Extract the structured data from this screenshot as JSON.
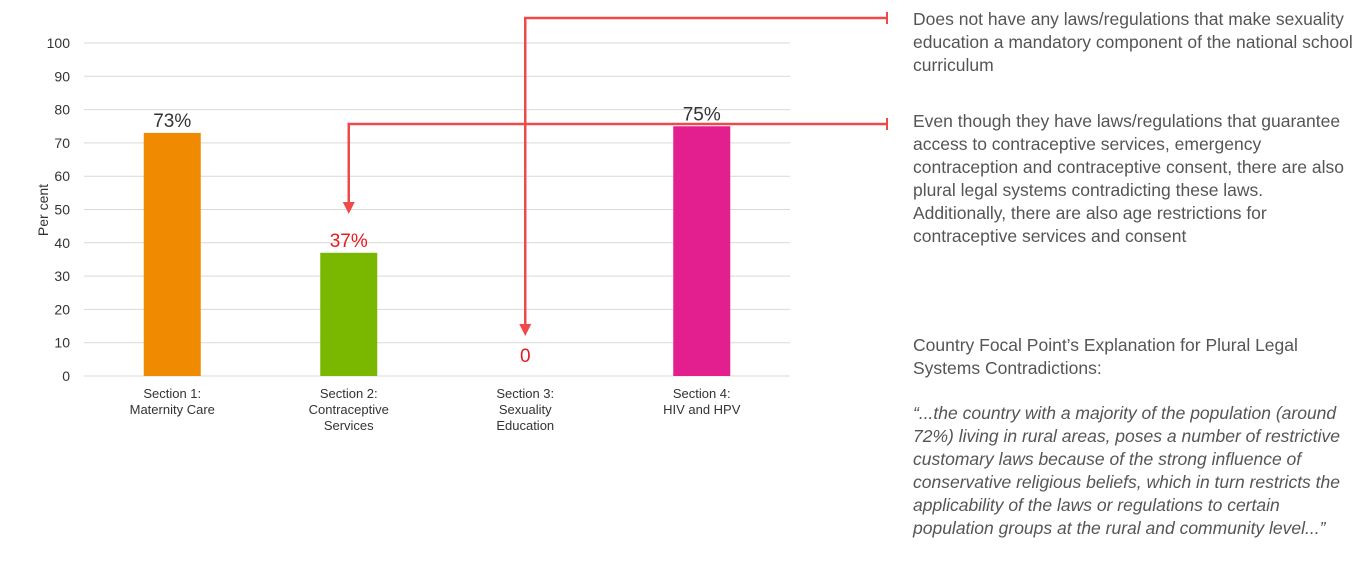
{
  "chart_data": {
    "type": "bar",
    "categories": [
      [
        "Section 1:",
        "Maternity Care"
      ],
      [
        "Section 2:",
        "Contraceptive",
        "Services"
      ],
      [
        "Section 3:",
        "Sexuality",
        "Education"
      ],
      [
        "Section 4:",
        "HIV and HPV"
      ]
    ],
    "values": [
      73,
      37,
      0,
      75
    ],
    "value_labels": [
      "73%",
      "37%",
      "0",
      "75%"
    ],
    "bar_colors": [
      "#f08a00",
      "#7ab800",
      "#ffffff",
      "#e31e8f"
    ],
    "value_label_colors": [
      "#333333",
      "#e8191f",
      "#e8191f",
      "#333333"
    ],
    "ylabel": "Per cent",
    "ylim": [
      0,
      100
    ],
    "yticks": [
      0,
      10,
      20,
      30,
      40,
      50,
      60,
      70,
      80,
      90,
      100
    ],
    "grid": true,
    "grid_color": "#d9d9d9",
    "annotation_color": "#f04a48"
  },
  "annotations": {
    "note_sexuality": "Does not have any laws/regulations that make sexuality education a mandatory component of the national school curriculum",
    "note_contraceptive": "Even though they have laws/regulations that guarantee access to contraceptive services, emergency contraception and contraceptive consent, there are also plural legal systems contradicting these laws. Additionally, there are also age restrictions for contraceptive services and consent",
    "explanation_title": "Country Focal Point’s Explanation for Plural Legal Systems Contradictions:",
    "explanation_quote": "“...the country with a majority of the population (around 72%) living in rural areas, poses a number of restrictive customary laws because of the strong influence of conservative religious beliefs, which in turn restricts the applicability of the laws or regulations to certain population groups at the rural and community level...”"
  }
}
